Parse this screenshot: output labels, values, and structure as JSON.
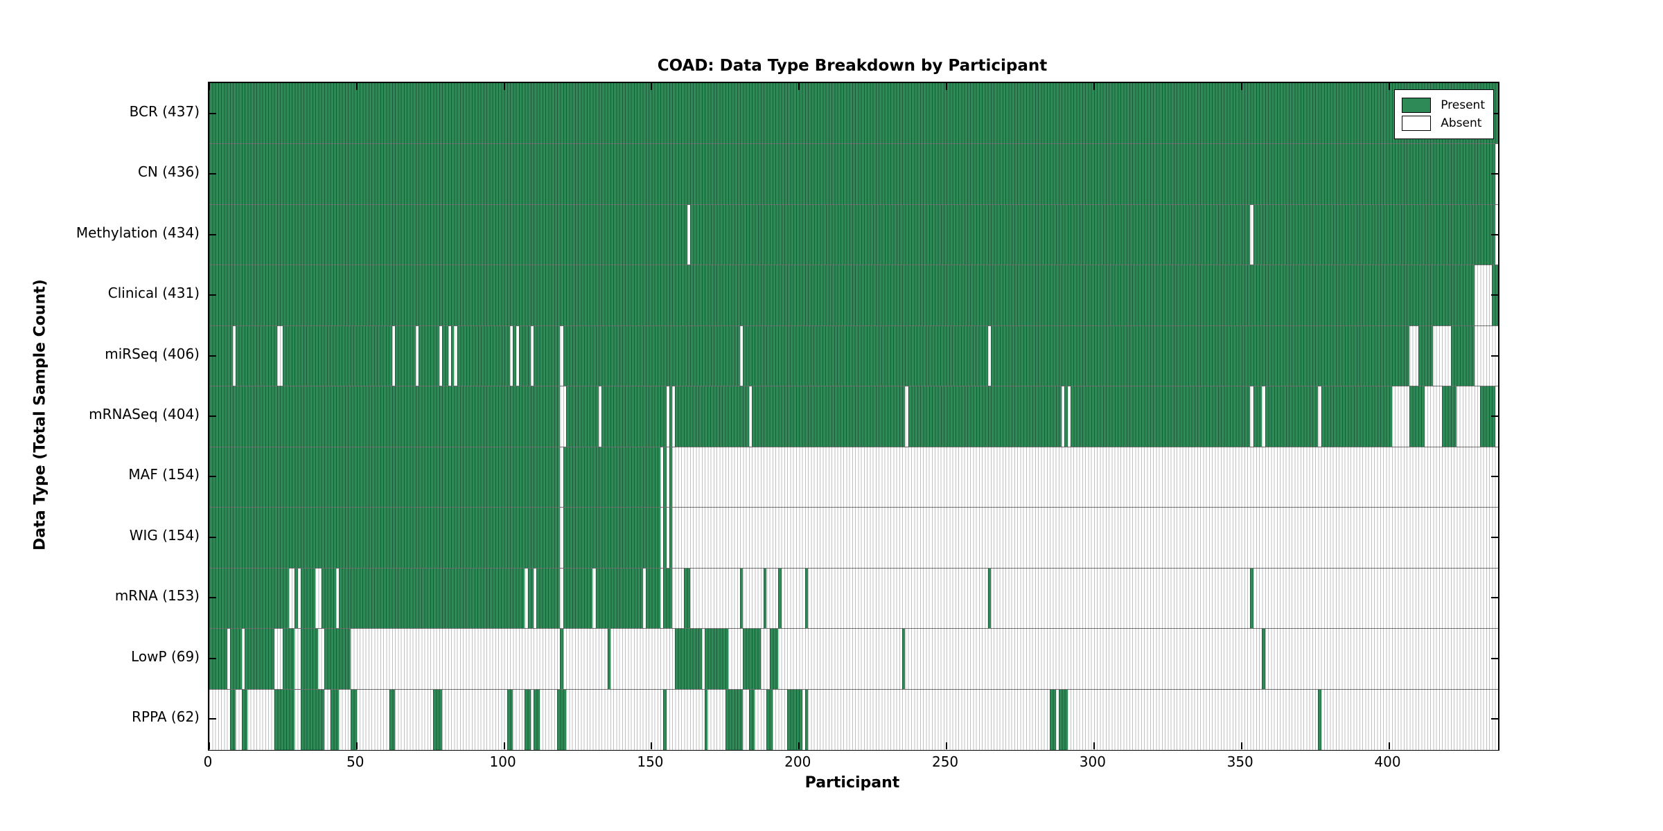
{
  "figure": {
    "title": "COAD: Data Type Breakdown by Participant",
    "x_axis_label": "Participant",
    "y_axis_label": "Data Type (Total Sample Count)"
  },
  "legend": {
    "present_label": "Present",
    "absent_label": "Absent"
  },
  "colors": {
    "present": "#2e8b57",
    "absent": "#ffffff",
    "present_stripe": "rgba(0,0,0,0.35)",
    "absent_stripe": "rgba(0,0,0,0.25)",
    "axis_border": "#000000"
  },
  "chart_data": {
    "type": "heatmap",
    "title": "COAD: Data Type Breakdown by Participant",
    "xlabel": "Participant",
    "ylabel": "Data Type (Total Sample Count)",
    "legend": [
      "Present",
      "Absent"
    ],
    "legend_position": "upper right",
    "grid": false,
    "n_participants": 437,
    "xlim": [
      0,
      437
    ],
    "x_ticks": [
      0,
      50,
      100,
      150,
      200,
      250,
      300,
      350,
      400
    ],
    "cell_values": {
      "present": 1,
      "absent": 0
    },
    "rows": [
      {
        "label": "BCR",
        "total": 437,
        "present_ranges": [
          [
            0,
            436
          ]
        ]
      },
      {
        "label": "CN",
        "total": 436,
        "present_ranges": [
          [
            0,
            435
          ]
        ]
      },
      {
        "label": "Methylation",
        "total": 434,
        "present_ranges": [
          [
            0,
            161
          ],
          [
            163,
            352
          ],
          [
            354,
            435
          ]
        ]
      },
      {
        "label": "Clinical",
        "total": 431,
        "present_ranges": [
          [
            0,
            428
          ],
          [
            435,
            436
          ]
        ]
      },
      {
        "label": "miRSeq",
        "total": 406,
        "present_ranges": [
          [
            0,
            7
          ],
          [
            9,
            22
          ],
          [
            25,
            61
          ],
          [
            63,
            69
          ],
          [
            71,
            77
          ],
          [
            79,
            80
          ],
          [
            82,
            82
          ],
          [
            84,
            101
          ],
          [
            103,
            103
          ],
          [
            105,
            108
          ],
          [
            110,
            118
          ],
          [
            120,
            179
          ],
          [
            181,
            263
          ],
          [
            265,
            406
          ],
          [
            410,
            414
          ],
          [
            421,
            428
          ]
        ]
      },
      {
        "label": "mRNASeq",
        "total": 404,
        "present_ranges": [
          [
            0,
            118
          ],
          [
            121,
            131
          ],
          [
            133,
            154
          ],
          [
            156,
            156
          ],
          [
            158,
            182
          ],
          [
            184,
            235
          ],
          [
            237,
            288
          ],
          [
            290,
            290
          ],
          [
            292,
            352
          ],
          [
            354,
            356
          ],
          [
            358,
            375
          ],
          [
            377,
            400
          ],
          [
            407,
            411
          ],
          [
            418,
            422
          ],
          [
            431,
            435
          ]
        ]
      },
      {
        "label": "MAF",
        "total": 154,
        "present_ranges": [
          [
            0,
            118
          ],
          [
            120,
            152
          ],
          [
            154,
            154
          ],
          [
            156,
            156
          ]
        ]
      },
      {
        "label": "WIG",
        "total": 154,
        "present_ranges": [
          [
            0,
            118
          ],
          [
            120,
            152
          ],
          [
            154,
            154
          ],
          [
            156,
            156
          ]
        ]
      },
      {
        "label": "mRNA",
        "total": 153,
        "present_ranges": [
          [
            0,
            26
          ],
          [
            29,
            29
          ],
          [
            31,
            35
          ],
          [
            38,
            42
          ],
          [
            44,
            106
          ],
          [
            108,
            109
          ],
          [
            111,
            118
          ],
          [
            120,
            129
          ],
          [
            131,
            146
          ],
          [
            148,
            152
          ],
          [
            154,
            156
          ],
          [
            161,
            162
          ],
          [
            180,
            180
          ],
          [
            188,
            188
          ],
          [
            193,
            193
          ],
          [
            202,
            202
          ],
          [
            264,
            264
          ],
          [
            353,
            353
          ]
        ]
      },
      {
        "label": "LowP",
        "total": 69,
        "present_ranges": [
          [
            0,
            5
          ],
          [
            7,
            10
          ],
          [
            12,
            21
          ],
          [
            25,
            28
          ],
          [
            31,
            36
          ],
          [
            39,
            47
          ],
          [
            119,
            119
          ],
          [
            135,
            135
          ],
          [
            158,
            166
          ],
          [
            168,
            175
          ],
          [
            181,
            186
          ],
          [
            190,
            192
          ],
          [
            235,
            235
          ],
          [
            357,
            357
          ]
        ]
      },
      {
        "label": "RPPA",
        "total": 62,
        "present_ranges": [
          [
            7,
            8
          ],
          [
            11,
            12
          ],
          [
            22,
            28
          ],
          [
            31,
            38
          ],
          [
            41,
            43
          ],
          [
            48,
            49
          ],
          [
            61,
            62
          ],
          [
            76,
            78
          ],
          [
            101,
            102
          ],
          [
            107,
            108
          ],
          [
            110,
            111
          ],
          [
            118,
            120
          ],
          [
            154,
            154
          ],
          [
            168,
            168
          ],
          [
            175,
            180
          ],
          [
            183,
            184
          ],
          [
            189,
            190
          ],
          [
            196,
            200
          ],
          [
            202,
            202
          ],
          [
            285,
            286
          ],
          [
            288,
            290
          ],
          [
            376,
            376
          ]
        ]
      }
    ]
  }
}
